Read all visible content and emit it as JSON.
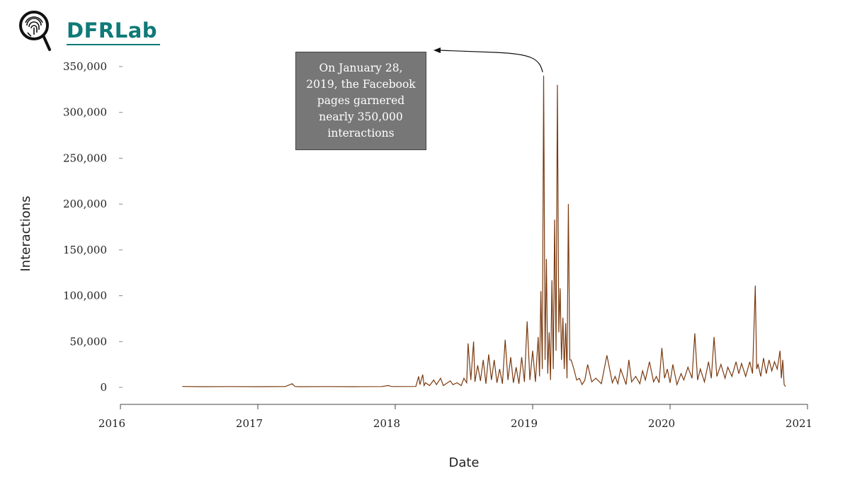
{
  "logo": {
    "text": "DFRLab",
    "icon": "fingerprint-magnifier-icon",
    "color": "#0f7a78"
  },
  "annotation": {
    "text": "On January 28, 2019, the Facebook pages garnered nearly 350,000 interactions"
  },
  "chart_data": {
    "type": "line",
    "title": "",
    "xlabel": "Date",
    "ylabel": "Interactions",
    "xlim": [
      2016.0,
      2021.0
    ],
    "ylim": [
      -20000,
      350000
    ],
    "x_ticks": [
      "2016",
      "2017",
      "2018",
      "2019",
      "2020",
      "2021"
    ],
    "y_ticks": [
      "0",
      "50,000",
      "100,000",
      "150,000",
      "200,000",
      "250,000",
      "300,000",
      "350,000"
    ],
    "grid": false,
    "line_color": "#7a3a10",
    "series": [
      {
        "x": [
          2016.45,
          2016.6,
          2016.8,
          2017.0,
          2017.2,
          2017.25,
          2017.27,
          2017.3,
          2017.5,
          2017.7,
          2017.9,
          2017.95,
          2017.97,
          2018.0,
          2018.15,
          2018.17,
          2018.18,
          2018.2,
          2018.21,
          2018.22,
          2018.25,
          2018.28,
          2018.3,
          2018.33,
          2018.35,
          2018.4,
          2018.42,
          2018.45,
          2018.48,
          2018.5,
          2018.52,
          2018.53,
          2018.55,
          2018.57,
          2018.58,
          2018.6,
          2018.62,
          2018.64,
          2018.66,
          2018.68,
          2018.7,
          2018.72,
          2018.74,
          2018.76,
          2018.78,
          2018.8,
          2018.82,
          2018.84,
          2018.86,
          2018.88,
          2018.9,
          2018.92,
          2018.94,
          2018.96,
          2018.98,
          2019.0,
          2019.02,
          2019.04,
          2019.05,
          2019.06,
          2019.07,
          2019.08,
          2019.09,
          2019.1,
          2019.11,
          2019.12,
          2019.13,
          2019.14,
          2019.15,
          2019.16,
          2019.17,
          2019.18,
          2019.19,
          2019.2,
          2019.21,
          2019.22,
          2019.23,
          2019.24,
          2019.25,
          2019.26,
          2019.27,
          2019.28,
          2019.3,
          2019.32,
          2019.34,
          2019.36,
          2019.38,
          2019.4,
          2019.43,
          2019.46,
          2019.5,
          2019.54,
          2019.58,
          2019.6,
          2019.62,
          2019.64,
          2019.68,
          2019.7,
          2019.72,
          2019.75,
          2019.78,
          2019.8,
          2019.82,
          2019.85,
          2019.88,
          2019.9,
          2019.92,
          2019.94,
          2019.96,
          2019.98,
          2020.0,
          2020.02,
          2020.05,
          2020.08,
          2020.1,
          2020.13,
          2020.16,
          2020.18,
          2020.2,
          2020.22,
          2020.25,
          2020.28,
          2020.3,
          2020.32,
          2020.34,
          2020.37,
          2020.4,
          2020.42,
          2020.45,
          2020.48,
          2020.5,
          2020.52,
          2020.55,
          2020.58,
          2020.6,
          2020.62,
          2020.63,
          2020.64,
          2020.66,
          2020.68,
          2020.7,
          2020.72,
          2020.74,
          2020.76,
          2020.78,
          2020.8,
          2020.81,
          2020.82,
          2020.83,
          2020.84
        ],
        "y": [
          1000,
          800,
          900,
          800,
          900,
          4000,
          1000,
          800,
          900,
          800,
          900,
          2000,
          1000,
          900,
          1000,
          12000,
          3000,
          14000,
          2000,
          5000,
          2000,
          8000,
          3000,
          10000,
          2000,
          7000,
          3000,
          5000,
          2000,
          10000,
          5000,
          48000,
          8000,
          50000,
          6000,
          24000,
          7000,
          30000,
          4000,
          36000,
          8000,
          30000,
          5000,
          20000,
          4000,
          52000,
          8000,
          33000,
          5000,
          22000,
          4000,
          33000,
          6000,
          72000,
          8000,
          40000,
          6000,
          55000,
          12000,
          105000,
          20000,
          340000,
          30000,
          140000,
          15000,
          60000,
          8000,
          117000,
          20000,
          183000,
          40000,
          330000,
          60000,
          108000,
          30000,
          76000,
          20000,
          70000,
          10000,
          200000,
          30000,
          30000,
          20000,
          8000,
          10000,
          3000,
          8000,
          25000,
          6000,
          10000,
          4000,
          35000,
          5000,
          12000,
          4000,
          20000,
          3000,
          30000,
          6000,
          12000,
          4000,
          18000,
          8000,
          28000,
          6000,
          12000,
          5000,
          43000,
          10000,
          20000,
          5000,
          25000,
          3000,
          15000,
          8000,
          22000,
          10000,
          59000,
          8000,
          20000,
          6000,
          28000,
          10000,
          55000,
          12000,
          25000,
          10000,
          22000,
          12000,
          28000,
          15000,
          26000,
          12000,
          28000,
          15000,
          111000,
          20000,
          25000,
          12000,
          32000,
          15000,
          30000,
          18000,
          28000,
          20000,
          40000,
          10000,
          30000,
          3000,
          1000
        ]
      }
    ]
  }
}
